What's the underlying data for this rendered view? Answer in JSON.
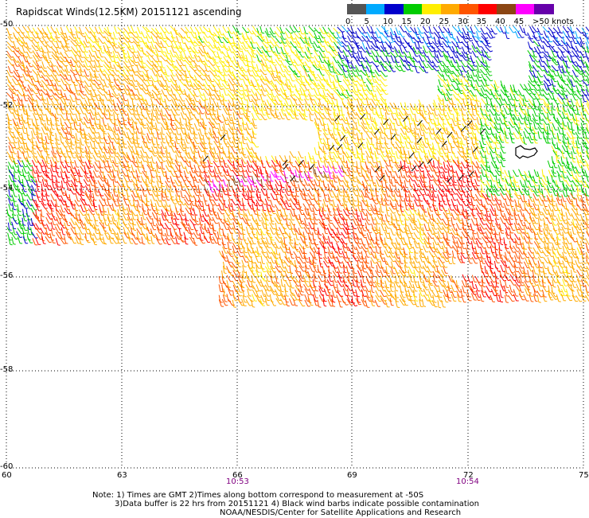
{
  "title": "Rapidscat Winds(12.5KM) 20151121 ascending",
  "legend": {
    "colors": [
      "#555555",
      "#00aaff",
      "#0000cc",
      "#00cc00",
      "#ffee00",
      "#ffaa00",
      "#ff5500",
      "#ff0000",
      "#8b4513",
      "#ff00ff",
      "#6600aa"
    ],
    "labels": [
      "0",
      "5",
      "10",
      "15",
      "20",
      "25",
      "30",
      "35",
      "40",
      "45",
      ">50 knots"
    ]
  },
  "axes": {
    "lat_labels": [
      "-50",
      "-52",
      "-54",
      "-56",
      "-58",
      "-60"
    ],
    "lon_labels": [
      "60",
      "63",
      "66",
      "69",
      "72",
      "75"
    ]
  },
  "times": [
    "10:53",
    "10:54"
  ],
  "notes": {
    "line1": "Note: 1) Times are GMT 2)Times along bottom correspond to measurement at -50S",
    "line2": "3)Data buffer is 22 hrs from 20151121 4) Black wind barbs indicate possible contamination",
    "line3": "NOAA/NESDIS/Center for Satellite Applications and Research"
  }
}
